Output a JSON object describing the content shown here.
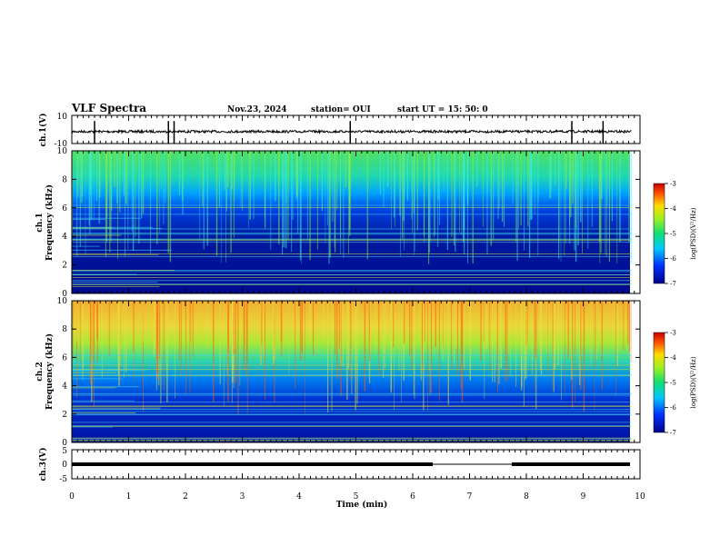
{
  "header": {
    "title": "VLF Spectra",
    "date": "Nov.23, 2024",
    "station": "station= OUI",
    "start": "start  UT =   15: 50: 0"
  },
  "chart_data": [
    {
      "type": "line",
      "title": "",
      "ylabel": "ch.1(V)",
      "xlim": [
        0,
        10
      ],
      "ylim": [
        -10,
        10
      ],
      "yticks": [
        "10",
        "-10"
      ],
      "baseline": -1.5,
      "spikes_min": [
        0.4,
        1.7,
        1.8,
        4.9,
        8.8,
        9.35
      ]
    },
    {
      "type": "heatmap",
      "ylabel": "ch.1\nFrequency (kHz)",
      "xlim": [
        0,
        10
      ],
      "ylim": [
        0,
        10
      ],
      "yticks": [
        "0",
        "2",
        "4",
        "6",
        "8",
        "10"
      ],
      "colorbar": {
        "label": "log(PSD)(V²/Hz)",
        "ticks": [
          "-3",
          "-4",
          "-5",
          "-6",
          "-7"
        ],
        "range": [
          -7,
          -3
        ]
      },
      "data_end_min": 9.85,
      "bands": [
        {
          "f_khz": [
            6.5,
            10
          ],
          "log_psd": -4.9
        },
        {
          "f_khz": [
            4.5,
            6.5
          ],
          "log_psd": -5.9
        },
        {
          "f_khz": [
            0,
            4.5
          ],
          "log_psd": -6.5
        }
      ]
    },
    {
      "type": "heatmap",
      "ylabel": "ch.2\nFrequency (kHz)",
      "xlim": [
        0,
        10
      ],
      "ylim": [
        0,
        10
      ],
      "yticks": [
        "0",
        "2",
        "4",
        "6",
        "8",
        "10"
      ],
      "colorbar": {
        "label": "log(PSD)(V²/Hz)",
        "ticks": [
          "-3",
          "-4",
          "-5",
          "-6",
          "-7"
        ],
        "range": [
          -7,
          -3
        ]
      },
      "data_end_min": 9.85,
      "bands": [
        {
          "f_khz": [
            7,
            10
          ],
          "log_psd": -3.9
        },
        {
          "f_khz": [
            4.5,
            7
          ],
          "log_psd": -4.7
        },
        {
          "f_khz": [
            0,
            4.5
          ],
          "log_psd": -6.4
        }
      ]
    },
    {
      "type": "line",
      "ylabel": "ch.3(V)",
      "xlim": [
        0,
        10
      ],
      "ylim": [
        -5,
        5
      ],
      "yticks": [
        "5",
        "0",
        "-5"
      ],
      "level": 0,
      "gap_min": [
        6.4,
        7.8
      ]
    }
  ],
  "xaxis": {
    "label": "Time  (min)",
    "ticks": [
      "0",
      "1",
      "2",
      "3",
      "4",
      "5",
      "6",
      "7",
      "8",
      "9",
      "10"
    ]
  },
  "colors": {
    "frame": "#000000",
    "background": "#ffffff"
  }
}
